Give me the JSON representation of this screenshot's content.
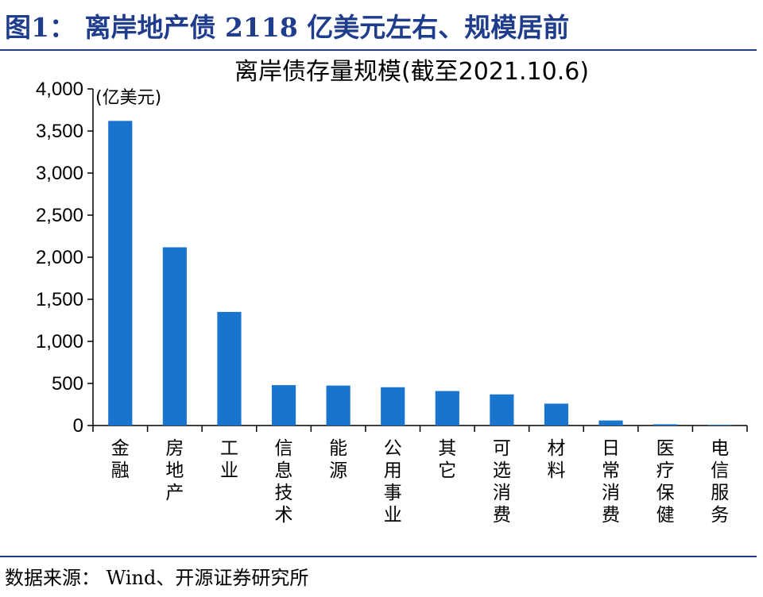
{
  "figure": {
    "title": "图1：  离岸地产债 2118 亿美元左右、规模居前",
    "source": "数据来源：  Wind、开源证券研究所"
  },
  "chart_data": {
    "type": "bar",
    "title": "离岸债存量规模(截至2021.10.6)",
    "unit_label": "(亿美元)",
    "categories": [
      "金融",
      "房地产",
      "工业",
      "信息技术",
      "能源",
      "公用事业",
      "其它",
      "可选消费",
      "材料",
      "日常消费",
      "医疗保健",
      "电信服务"
    ],
    "values": [
      3620,
      2118,
      1350,
      480,
      475,
      455,
      410,
      370,
      260,
      60,
      15,
      8
    ],
    "ylim": [
      0,
      4000
    ],
    "yticks": [
      0,
      500,
      1000,
      1500,
      2000,
      2500,
      3000,
      3500,
      4000
    ],
    "ytick_labels": [
      "0",
      "500",
      "1,000",
      "1,500",
      "2,000",
      "2,500",
      "3,000",
      "3,500",
      "4,000"
    ],
    "bar_color": "#1874cd",
    "grid": false,
    "legend": "none"
  }
}
